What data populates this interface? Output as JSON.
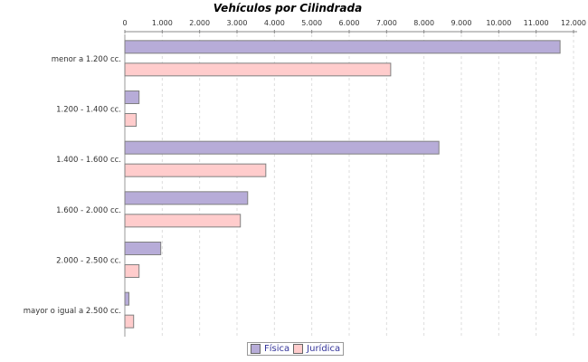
{
  "chart_data": {
    "type": "bar",
    "orientation": "horizontal",
    "title": "Vehículos por Cilindrada",
    "categories": [
      "menor a 1.200 cc.",
      "1.200 - 1.400 cc.",
      "1.400 - 1.600 cc.",
      "1.600 - 2.000 cc.",
      "2.000 - 2.500 cc.",
      "mayor o igual a 2.500 cc."
    ],
    "series": [
      {
        "name": "Física",
        "color": "#b7acd8",
        "values": [
          11640,
          380,
          8400,
          3285,
          960,
          110
        ]
      },
      {
        "name": "Jurídica",
        "color": "#ffcccc",
        "values": [
          7110,
          305,
          3770,
          3090,
          380,
          235
        ]
      }
    ],
    "xlim": [
      0,
      12000
    ],
    "xticks": [
      "0",
      "1.000",
      "2.000",
      "3.000",
      "4.000",
      "5.000",
      "6.000",
      "7.000",
      "8.000",
      "9.000",
      "10.000",
      "11.000",
      "12.000"
    ],
    "value_axis_position": "top",
    "grid": true,
    "legend": "bottom"
  }
}
